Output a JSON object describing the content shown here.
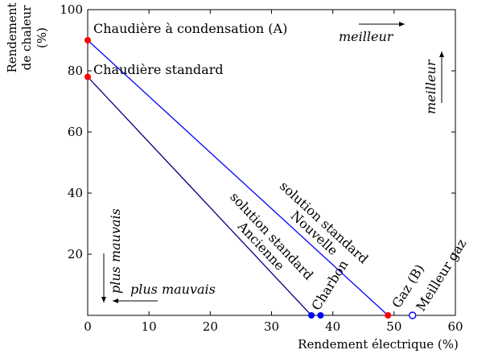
{
  "chart_data": {
    "type": "line",
    "xlabel": "Rendement électrique (%)",
    "ylabel_line1": "Rendement",
    "ylabel_line2": "de chaleur",
    "ylabel_line3": "(%)",
    "xlim": [
      0,
      60
    ],
    "ylim": [
      0,
      100
    ],
    "xticks": [
      0,
      10,
      20,
      30,
      40,
      50,
      60
    ],
    "yticks": [
      20,
      40,
      60,
      80,
      100
    ],
    "series": [
      {
        "color": "#0000ff",
        "points": [
          [
            0,
            90
          ],
          [
            49,
            0
          ]
        ],
        "label_lines": [
          "Nouvelle",
          "solution standard"
        ]
      },
      {
        "color": "#000080",
        "points": [
          [
            0,
            78
          ],
          [
            36.5,
            0
          ]
        ],
        "label_lines": [
          "Ancienne",
          "solution standard"
        ]
      }
    ],
    "markers": [
      {
        "x": 0,
        "y": 90,
        "color": "#ff0000",
        "fill": true,
        "label": "Chaudière à condensation (A)"
      },
      {
        "x": 0,
        "y": 78,
        "color": "#ff0000",
        "fill": true,
        "label": "Chaudière standard"
      },
      {
        "x": 36.5,
        "y": 0,
        "color": "#0000ff",
        "fill": true,
        "label": ""
      },
      {
        "x": 38,
        "y": 0,
        "color": "#0000ff",
        "fill": true,
        "label": "Charbon"
      },
      {
        "x": 49,
        "y": 0,
        "color": "#ff0000",
        "fill": true,
        "label": "Gaz (B)"
      },
      {
        "x": 53,
        "y": 0,
        "color": "#0000ff",
        "fill": false,
        "label": "Meilleur gaz"
      }
    ],
    "annotations": {
      "better_right": "meilleur",
      "better_up": "meilleur",
      "worse_left": "plus mauvais",
      "worse_down": "plus mauvais"
    }
  }
}
